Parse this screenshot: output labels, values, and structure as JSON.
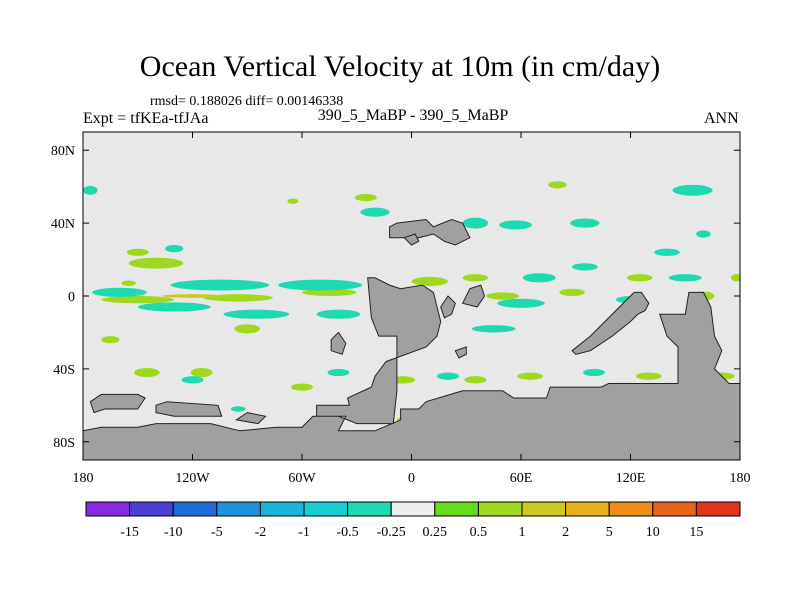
{
  "header": {
    "title": "Ocean Vertical Velocity at 10m (in cm/day)",
    "stats": "rmsd= 0.188026 diff= 0.00146338",
    "experiment": "Expt = tfKEa-tfJAa",
    "case": "390_5_MaBP - 390_5_MaBP",
    "season": "ANN"
  },
  "chart_data": {
    "type": "heatmap",
    "title": "Ocean Vertical Velocity at 10m (in cm/day)",
    "projection": "cylindrical equidistant",
    "xlim": [
      -180,
      180
    ],
    "ylim": [
      -90,
      90
    ],
    "x_ticks": [
      {
        "value": -180,
        "label": "180"
      },
      {
        "value": -120,
        "label": "120W"
      },
      {
        "value": -60,
        "label": "60W"
      },
      {
        "value": 0,
        "label": "0"
      },
      {
        "value": 60,
        "label": "60E"
      },
      {
        "value": 120,
        "label": "120E"
      },
      {
        "value": 180,
        "label": "180"
      }
    ],
    "y_ticks": [
      {
        "value": 80,
        "label": "80N"
      },
      {
        "value": 40,
        "label": "40N"
      },
      {
        "value": 0,
        "label": "0"
      },
      {
        "value": -40,
        "label": "40S"
      },
      {
        "value": -80,
        "label": "80S"
      }
    ],
    "colorbar": {
      "labels": [
        "-15",
        "-10",
        "-5",
        "-2",
        "-1",
        "-0.5",
        "-0.25",
        "0.25",
        "0.5",
        "1",
        "2",
        "5",
        "10",
        "15"
      ],
      "colors": [
        "#8a2be2",
        "#4b3fd6",
        "#1f6bd8",
        "#1e90d8",
        "#1ab4d8",
        "#17cfd0",
        "#1fd9b0",
        "#eeeeee",
        "#66dd1a",
        "#a0d820",
        "#cbc91e",
        "#e6b21b",
        "#ec8f16",
        "#e8621a",
        "#e2341c"
      ]
    },
    "land_color": "#a0a0a0",
    "background_color": "#e8e8e8",
    "landmasses": [
      {
        "name": "Eurasia-Africa",
        "points": [
          [
            -8,
            -52
          ],
          [
            -8,
            -22
          ],
          [
            -18,
            -22
          ],
          [
            -22,
            -12
          ],
          [
            -24,
            10
          ],
          [
            -20,
            10
          ],
          [
            -12,
            6
          ],
          [
            -6,
            4
          ],
          [
            6,
            6
          ],
          [
            12,
            2
          ],
          [
            14,
            -6
          ],
          [
            16,
            -14
          ],
          [
            14,
            -22
          ],
          [
            8,
            -28
          ],
          [
            -14,
            -36
          ],
          [
            -20,
            -44
          ],
          [
            -22,
            -50
          ],
          [
            -35,
            -56
          ],
          [
            -34,
            -60
          ],
          [
            -52,
            -60
          ],
          [
            -52,
            -66
          ],
          [
            -36,
            -66
          ],
          [
            -40,
            -74
          ],
          [
            -20,
            -74
          ],
          [
            -6,
            -68
          ],
          [
            -6,
            -62
          ],
          [
            4,
            -62
          ],
          [
            8,
            -58
          ],
          [
            28,
            -52
          ],
          [
            50,
            -52
          ],
          [
            56,
            -56
          ],
          [
            74,
            -56
          ],
          [
            76,
            -50
          ],
          [
            104,
            -50
          ],
          [
            108,
            -48
          ],
          [
            146,
            -48
          ],
          [
            146,
            -28
          ],
          [
            140,
            -22
          ],
          [
            136,
            -10
          ],
          [
            150,
            -10
          ],
          [
            152,
            2
          ],
          [
            160,
            2
          ],
          [
            164,
            -6
          ],
          [
            166,
            -22
          ],
          [
            170,
            -30
          ],
          [
            166,
            -40
          ],
          [
            174,
            -48
          ],
          [
            180,
            -48
          ],
          [
            180,
            -90
          ],
          [
            -180,
            -90
          ],
          [
            -180,
            -74
          ],
          [
            -170,
            -72
          ],
          [
            -150,
            -72
          ],
          [
            -140,
            -70
          ],
          [
            -110,
            -70
          ],
          [
            -94,
            -74
          ],
          [
            -74,
            -72
          ],
          [
            -60,
            -72
          ],
          [
            -54,
            -66
          ],
          [
            -40,
            -66
          ],
          [
            -30,
            -70
          ],
          [
            -10,
            -70
          ],
          [
            -8,
            -52
          ]
        ]
      },
      {
        "name": "Island-A",
        "points": [
          [
            -44,
            -24
          ],
          [
            -40,
            -20
          ],
          [
            -36,
            -26
          ],
          [
            -38,
            -32
          ],
          [
            -44,
            -30
          ]
        ]
      },
      {
        "name": "Island-B",
        "points": [
          [
            -12,
            38
          ],
          [
            -8,
            40
          ],
          [
            8,
            42
          ],
          [
            12,
            38
          ],
          [
            22,
            42
          ],
          [
            28,
            40
          ],
          [
            32,
            32
          ],
          [
            24,
            28
          ],
          [
            18,
            30
          ],
          [
            12,
            34
          ],
          [
            4,
            32
          ],
          [
            -12,
            32
          ]
        ]
      },
      {
        "name": "Island-C",
        "points": [
          [
            -4,
            32
          ],
          [
            0,
            28
          ],
          [
            4,
            30
          ],
          [
            2,
            34
          ]
        ]
      },
      {
        "name": "Island-D",
        "points": [
          [
            16,
            -6
          ],
          [
            20,
            0
          ],
          [
            24,
            -4
          ],
          [
            22,
            -10
          ],
          [
            18,
            -12
          ]
        ]
      },
      {
        "name": "Island-E",
        "points": [
          [
            28,
            -4
          ],
          [
            32,
            4
          ],
          [
            38,
            6
          ],
          [
            40,
            0
          ],
          [
            36,
            -6
          ]
        ]
      },
      {
        "name": "Island-F",
        "points": [
          [
            24,
            -30
          ],
          [
            30,
            -28
          ],
          [
            30,
            -32
          ],
          [
            26,
            -34
          ]
        ]
      },
      {
        "name": "Island-G",
        "points": [
          [
            -176,
            -58
          ],
          [
            -170,
            -54
          ],
          [
            -150,
            -54
          ],
          [
            -146,
            -56
          ],
          [
            -150,
            -62
          ],
          [
            -168,
            -62
          ],
          [
            -174,
            -64
          ]
        ]
      },
      {
        "name": "Island-H",
        "points": [
          [
            -140,
            -60
          ],
          [
            -134,
            -58
          ],
          [
            -106,
            -60
          ],
          [
            -104,
            -66
          ],
          [
            -130,
            -66
          ],
          [
            -140,
            -64
          ]
        ]
      },
      {
        "name": "Island-I",
        "points": [
          [
            -96,
            -68
          ],
          [
            -90,
            -64
          ],
          [
            -80,
            -66
          ],
          [
            -84,
            -70
          ]
        ]
      },
      {
        "name": "Island-J",
        "points": [
          [
            88,
            -30
          ],
          [
            98,
            -22
          ],
          [
            112,
            -8
          ],
          [
            122,
            2
          ],
          [
            126,
            2
          ],
          [
            130,
            -4
          ],
          [
            128,
            -8
          ],
          [
            124,
            -10
          ],
          [
            120,
            -14
          ],
          [
            110,
            -22
          ],
          [
            98,
            -30
          ],
          [
            90,
            -32
          ]
        ]
      }
    ],
    "anomalies": [
      {
        "level": "0.5",
        "lon": -150,
        "lat": -2,
        "w": 40,
        "h": 4
      },
      {
        "level": "0.5",
        "lon": -95,
        "lat": -1,
        "w": 38,
        "h": 4
      },
      {
        "level": "1",
        "lon": -120,
        "lat": 0,
        "w": 34,
        "h": 2
      },
      {
        "level": "0.5",
        "lon": -45,
        "lat": 2,
        "w": 30,
        "h": 4
      },
      {
        "level": "-0.25",
        "lon": -160,
        "lat": 2,
        "w": 30,
        "h": 5
      },
      {
        "level": "-0.25",
        "lon": -105,
        "lat": 6,
        "w": 54,
        "h": 6
      },
      {
        "level": "-0.25",
        "lon": -50,
        "lat": 6,
        "w": 46,
        "h": 6
      },
      {
        "level": "-0.25",
        "lon": -130,
        "lat": -6,
        "w": 40,
        "h": 5
      },
      {
        "level": "-0.25",
        "lon": -85,
        "lat": -10,
        "w": 36,
        "h": 5
      },
      {
        "level": "-0.25",
        "lon": -40,
        "lat": -10,
        "w": 24,
        "h": 5
      },
      {
        "level": "0.5",
        "lon": -140,
        "lat": 18,
        "w": 30,
        "h": 6
      },
      {
        "level": "0.5",
        "lon": -150,
        "lat": 24,
        "w": 12,
        "h": 4
      },
      {
        "level": "0.5",
        "lon": -90,
        "lat": -18,
        "w": 14,
        "h": 5
      },
      {
        "level": "0.5",
        "lon": -165,
        "lat": -24,
        "w": 10,
        "h": 4
      },
      {
        "level": "0.5",
        "lon": 10,
        "lat": 8,
        "w": 20,
        "h": 5
      },
      {
        "level": "0.5",
        "lon": 35,
        "lat": 10,
        "w": 14,
        "h": 4
      },
      {
        "level": "0.5",
        "lon": 50,
        "lat": 0,
        "w": 18,
        "h": 4
      },
      {
        "level": "0.5",
        "lon": 88,
        "lat": 2,
        "w": 14,
        "h": 4
      },
      {
        "level": "0.5",
        "lon": 125,
        "lat": 10,
        "w": 14,
        "h": 4
      },
      {
        "level": "0.5",
        "lon": 160,
        "lat": 0,
        "w": 12,
        "h": 5
      },
      {
        "level": "-0.25",
        "lon": 70,
        "lat": 10,
        "w": 18,
        "h": 5
      },
      {
        "level": "-0.25",
        "lon": 95,
        "lat": 16,
        "w": 14,
        "h": 4
      },
      {
        "level": "-0.25",
        "lon": 60,
        "lat": -4,
        "w": 26,
        "h": 5
      },
      {
        "level": "-0.25",
        "lon": 45,
        "lat": -18,
        "w": 24,
        "h": 4
      },
      {
        "level": "-0.25",
        "lon": 120,
        "lat": -2,
        "w": 16,
        "h": 4
      },
      {
        "level": "-0.25",
        "lon": 150,
        "lat": 10,
        "w": 18,
        "h": 4
      },
      {
        "level": "0.5",
        "lon": 178,
        "lat": 10,
        "w": 6,
        "h": 4
      },
      {
        "level": "-0.25",
        "lon": 35,
        "lat": 40,
        "w": 14,
        "h": 6
      },
      {
        "level": "-0.25",
        "lon": 57,
        "lat": 39,
        "w": 18,
        "h": 5
      },
      {
        "level": "-0.25",
        "lon": 95,
        "lat": 40,
        "w": 16,
        "h": 5
      },
      {
        "level": "-0.25",
        "lon": 160,
        "lat": 34,
        "w": 8,
        "h": 4
      },
      {
        "level": "-0.25",
        "lon": 154,
        "lat": 58,
        "w": 22,
        "h": 6
      },
      {
        "level": "-0.25",
        "lon": -176,
        "lat": 58,
        "w": 8,
        "h": 5
      },
      {
        "level": "0.5",
        "lon": 80,
        "lat": 61,
        "w": 10,
        "h": 4
      },
      {
        "level": "0.5",
        "lon": -25,
        "lat": 54,
        "w": 12,
        "h": 4
      },
      {
        "level": "0.5",
        "lon": -65,
        "lat": 52,
        "w": 6,
        "h": 3
      },
      {
        "level": "-0.25",
        "lon": -20,
        "lat": 46,
        "w": 16,
        "h": 5
      },
      {
        "level": "-0.25",
        "lon": -130,
        "lat": 26,
        "w": 10,
        "h": 4
      },
      {
        "level": "0.5",
        "lon": -145,
        "lat": -42,
        "w": 14,
        "h": 5
      },
      {
        "level": "0.5",
        "lon": -115,
        "lat": -42,
        "w": 12,
        "h": 5
      },
      {
        "level": "0.5",
        "lon": -60,
        "lat": -50,
        "w": 12,
        "h": 4
      },
      {
        "level": "0.5",
        "lon": -5,
        "lat": -46,
        "w": 14,
        "h": 4
      },
      {
        "level": "0.5",
        "lon": 35,
        "lat": -46,
        "w": 12,
        "h": 4
      },
      {
        "level": "0.5",
        "lon": 65,
        "lat": -44,
        "w": 14,
        "h": 4
      },
      {
        "level": "0.5",
        "lon": 130,
        "lat": -44,
        "w": 14,
        "h": 4
      },
      {
        "level": "0.5",
        "lon": 170,
        "lat": -44,
        "w": 14,
        "h": 4
      },
      {
        "level": "-0.25",
        "lon": -120,
        "lat": -46,
        "w": 12,
        "h": 4
      },
      {
        "level": "-0.25",
        "lon": -40,
        "lat": -42,
        "w": 12,
        "h": 4
      },
      {
        "level": "-0.25",
        "lon": 20,
        "lat": -44,
        "w": 12,
        "h": 4
      },
      {
        "level": "-0.25",
        "lon": 100,
        "lat": -42,
        "w": 12,
        "h": 4
      },
      {
        "level": "-0.25",
        "lon": 155,
        "lat": -40,
        "w": 10,
        "h": 4
      },
      {
        "level": "-0.25",
        "lon": -95,
        "lat": -62,
        "w": 8,
        "h": 3
      },
      {
        "level": "-0.25",
        "lon": -10,
        "lat": -75,
        "w": 8,
        "h": 3
      },
      {
        "level": "0.5",
        "lon": -5,
        "lat": -68,
        "w": 6,
        "h": 3
      },
      {
        "level": "0.5",
        "lon": -155,
        "lat": 7,
        "w": 8,
        "h": 3
      },
      {
        "level": "-0.25",
        "lon": 140,
        "lat": 24,
        "w": 14,
        "h": 4
      }
    ]
  }
}
